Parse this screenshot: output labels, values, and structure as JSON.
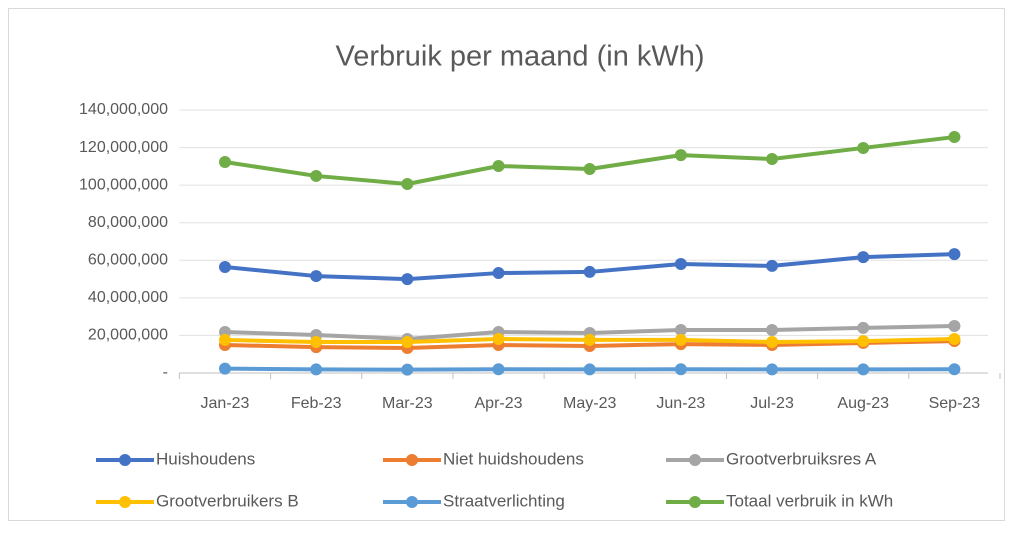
{
  "chart_data": {
    "type": "line",
    "title": "Verbruik per maand (in kWh)",
    "categories": [
      "Jan-23",
      "Feb-23",
      "Mar-23",
      "Apr-23",
      "May-23",
      "Jun-23",
      "Jul-23",
      "Aug-23",
      "Sep-23"
    ],
    "series": [
      {
        "name": "Huishoudens",
        "color": "#4472c4",
        "values": [
          56400000,
          51600000,
          50000000,
          53200000,
          53800000,
          58000000,
          57000000,
          61700000,
          63300000
        ]
      },
      {
        "name": "Niet huidshoudens",
        "color": "#ed7d31",
        "values": [
          14900000,
          13800000,
          13300000,
          14900000,
          14400000,
          15400000,
          14900000,
          16000000,
          17000000
        ]
      },
      {
        "name": "Grootverbruiksres A",
        "color": "#a5a5a5",
        "values": [
          21800000,
          20200000,
          18100000,
          21800000,
          21300000,
          22900000,
          22900000,
          24000000,
          25000000
        ]
      },
      {
        "name": "Grootverbruikers B",
        "color": "#ffc000",
        "values": [
          17600000,
          16500000,
          16500000,
          18100000,
          17600000,
          17600000,
          16500000,
          17000000,
          18100000
        ]
      },
      {
        "name": "Straatverlichting",
        "color": "#5b9bd5",
        "values": [
          2300000,
          1900000,
          1800000,
          2000000,
          1900000,
          2000000,
          1900000,
          1900000,
          2000000
        ]
      },
      {
        "name": "Totaal verbruik in kWh",
        "color": "#70ad47",
        "values": [
          112300000,
          104900000,
          100600000,
          110200000,
          108600000,
          116000000,
          113900000,
          119800000,
          125600000
        ]
      }
    ],
    "ylim": [
      0,
      140000000
    ],
    "yticks": [
      {
        "value": 0,
        "label": "-"
      },
      {
        "value": 20000000,
        "label": "20,000,000"
      },
      {
        "value": 40000000,
        "label": "40,000,000"
      },
      {
        "value": 60000000,
        "label": "60,000,000"
      },
      {
        "value": 80000000,
        "label": "80,000,000"
      },
      {
        "value": 100000000,
        "label": "100,000,000"
      },
      {
        "value": 120000000,
        "label": "120,000,000"
      },
      {
        "value": 140000000,
        "label": "140,000,000"
      }
    ],
    "grid": true,
    "legend": "bottom"
  }
}
